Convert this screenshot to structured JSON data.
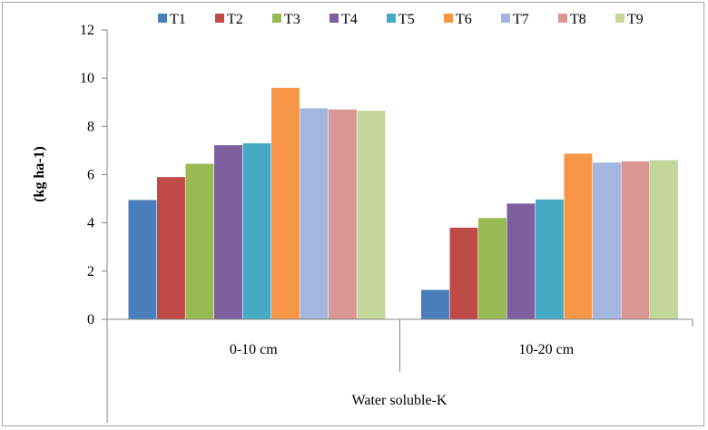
{
  "chart_data": {
    "type": "bar",
    "title": "",
    "ylabel": "(kg ha-1)",
    "xlabel": "Water soluble-K",
    "ylim": [
      0,
      12
    ],
    "yticks": [
      0,
      2,
      4,
      6,
      8,
      10,
      12
    ],
    "categories": [
      "0-10 cm",
      "10-20 cm"
    ],
    "grid": false,
    "legend_position": "top",
    "series": [
      {
        "name": "T1",
        "color": "#4a7ebb",
        "values": [
          4.95,
          1.22
        ]
      },
      {
        "name": "T2",
        "color": "#be4b48",
        "values": [
          5.9,
          3.8
        ]
      },
      {
        "name": "T3",
        "color": "#98b954",
        "values": [
          6.45,
          4.2
        ]
      },
      {
        "name": "T4",
        "color": "#7d5fa0",
        "values": [
          7.22,
          4.8
        ]
      },
      {
        "name": "T5",
        "color": "#46aac5",
        "values": [
          7.3,
          4.97
        ]
      },
      {
        "name": "T6",
        "color": "#f79646",
        "values": [
          9.6,
          6.87
        ]
      },
      {
        "name": "T7",
        "color": "#a2b6de",
        "values": [
          8.75,
          6.5
        ]
      },
      {
        "name": "T8",
        "color": "#da9694",
        "values": [
          8.7,
          6.55
        ]
      },
      {
        "name": "T9",
        "color": "#c4d79b",
        "values": [
          8.65,
          6.6
        ]
      }
    ]
  }
}
